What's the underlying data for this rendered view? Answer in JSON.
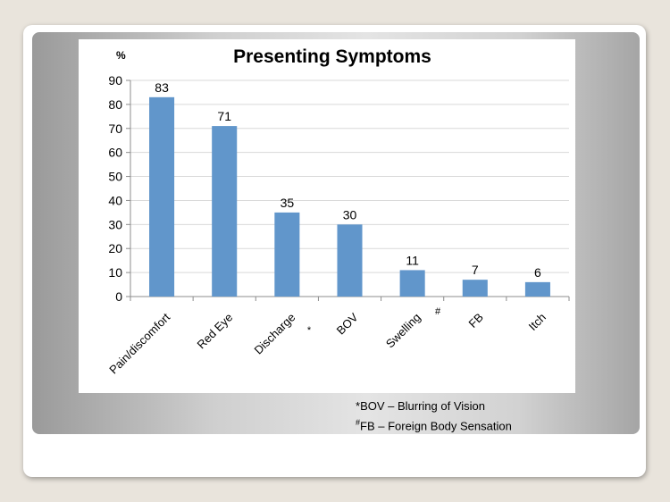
{
  "chart_data": {
    "type": "bar",
    "title": "Presenting Symptoms",
    "ylabel": "%",
    "ylim": [
      0,
      90
    ],
    "yticks": [
      0,
      10,
      20,
      30,
      40,
      50,
      60,
      70,
      80,
      90
    ],
    "grid": true,
    "bar_color": "#6196cb",
    "categories": [
      {
        "label": "Pain/discomfort",
        "marker": ""
      },
      {
        "label": "Red Eye",
        "marker": ""
      },
      {
        "label": "Discharge",
        "marker": ""
      },
      {
        "label": "BOV",
        "marker": "*"
      },
      {
        "label": "Swelling",
        "marker": ""
      },
      {
        "label": "FB",
        "marker": "#"
      },
      {
        "label": "Itch",
        "marker": ""
      }
    ],
    "values": [
      83,
      71,
      35,
      30,
      11,
      7,
      6
    ]
  },
  "footnotes": {
    "bov": {
      "marker": "*",
      "text": "BOV – Blurring of Vision"
    },
    "fb": {
      "marker": "#",
      "text": "FB – Foreign Body Sensation"
    }
  }
}
